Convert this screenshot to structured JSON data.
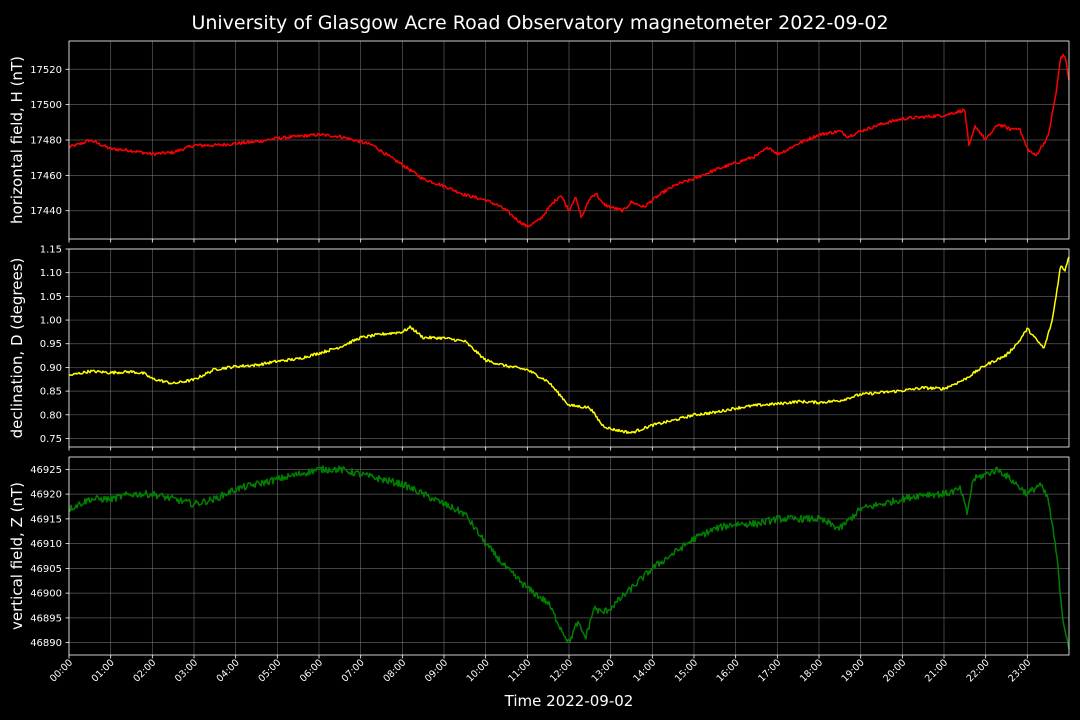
{
  "chart_data": {
    "type": "line",
    "title": "University of Glasgow Acre Road Observatory magnetometer 2022-09-02",
    "xlabel": "Time 2022-09-02",
    "x_tick_labels": [
      "00:00",
      "01:00",
      "02:00",
      "03:00",
      "04:00",
      "05:00",
      "06:00",
      "07:00",
      "08:00",
      "09:00",
      "10:00",
      "11:00",
      "12:00",
      "13:00",
      "14:00",
      "15:00",
      "16:00",
      "17:00",
      "18:00",
      "19:00",
      "20:00",
      "21:00",
      "22:00",
      "23:00"
    ],
    "xlim_hours": [
      0,
      24
    ],
    "grid": true,
    "panels": [
      {
        "ylabel": "horizontal field, H (nT)",
        "color": "#ff0000",
        "ylim": [
          17424,
          17536
        ],
        "yticks": [
          17440,
          17460,
          17480,
          17500,
          17520
        ],
        "data": [
          [
            0,
            17476
          ],
          [
            0.3,
            17478
          ],
          [
            0.5,
            17480
          ],
          [
            1,
            17475
          ],
          [
            1.5,
            17474
          ],
          [
            2,
            17472
          ],
          [
            2.5,
            17473
          ],
          [
            3,
            17477
          ],
          [
            3.5,
            17477
          ],
          [
            4,
            17478
          ],
          [
            4.5,
            17479
          ],
          [
            5,
            17481
          ],
          [
            5.5,
            17482
          ],
          [
            6,
            17483
          ],
          [
            6.5,
            17482
          ],
          [
            7,
            17479
          ],
          [
            7.3,
            17477
          ],
          [
            7.6,
            17472
          ],
          [
            8,
            17466
          ],
          [
            8.5,
            17458
          ],
          [
            9,
            17454
          ],
          [
            9.5,
            17449
          ],
          [
            10,
            17446
          ],
          [
            10.3,
            17443
          ],
          [
            10.5,
            17440
          ],
          [
            10.8,
            17434
          ],
          [
            11,
            17431
          ],
          [
            11.3,
            17435
          ],
          [
            11.6,
            17444
          ],
          [
            11.8,
            17449
          ],
          [
            12,
            17440
          ],
          [
            12.15,
            17448
          ],
          [
            12.3,
            17436
          ],
          [
            12.5,
            17447
          ],
          [
            12.65,
            17450
          ],
          [
            12.8,
            17444
          ],
          [
            13,
            17442
          ],
          [
            13.3,
            17440
          ],
          [
            13.5,
            17445
          ],
          [
            13.8,
            17442
          ],
          [
            14,
            17446
          ],
          [
            14.3,
            17451
          ],
          [
            14.6,
            17455
          ],
          [
            15,
            17458
          ],
          [
            15.5,
            17463
          ],
          [
            16,
            17467
          ],
          [
            16.5,
            17471
          ],
          [
            16.8,
            17476
          ],
          [
            17,
            17472
          ],
          [
            17.2,
            17474
          ],
          [
            17.5,
            17478
          ],
          [
            18,
            17483
          ],
          [
            18.5,
            17485
          ],
          [
            18.7,
            17482
          ],
          [
            19,
            17485
          ],
          [
            19.5,
            17489
          ],
          [
            20,
            17492
          ],
          [
            20.5,
            17493
          ],
          [
            21,
            17494
          ],
          [
            21.5,
            17497
          ],
          [
            21.6,
            17476
          ],
          [
            21.75,
            17488
          ],
          [
            22,
            17480
          ],
          [
            22.3,
            17489
          ],
          [
            22.6,
            17486
          ],
          [
            22.8,
            17487
          ],
          [
            23,
            17475
          ],
          [
            23.2,
            17471
          ],
          [
            23.5,
            17482
          ],
          [
            23.7,
            17508
          ],
          [
            23.8,
            17527
          ],
          [
            23.9,
            17528
          ],
          [
            24,
            17514
          ]
        ]
      },
      {
        "ylabel": "declination, D (degrees)",
        "color": "#ffff00",
        "ylim": [
          0.732,
          1.15
        ],
        "yticks": [
          0.75,
          0.8,
          0.85,
          0.9,
          0.95,
          1.0,
          1.05,
          1.1,
          1.15
        ],
        "data": [
          [
            0,
            0.883
          ],
          [
            0.5,
            0.892
          ],
          [
            1,
            0.889
          ],
          [
            1.5,
            0.891
          ],
          [
            1.8,
            0.887
          ],
          [
            2,
            0.876
          ],
          [
            2.5,
            0.866
          ],
          [
            3,
            0.874
          ],
          [
            3.5,
            0.896
          ],
          [
            4,
            0.902
          ],
          [
            4.5,
            0.905
          ],
          [
            5,
            0.913
          ],
          [
            5.5,
            0.918
          ],
          [
            6,
            0.93
          ],
          [
            6.5,
            0.943
          ],
          [
            7,
            0.963
          ],
          [
            7.5,
            0.97
          ],
          [
            8,
            0.975
          ],
          [
            8.2,
            0.985
          ],
          [
            8.5,
            0.963
          ],
          [
            9,
            0.962
          ],
          [
            9.5,
            0.955
          ],
          [
            10,
            0.915
          ],
          [
            10.5,
            0.903
          ],
          [
            11,
            0.895
          ],
          [
            11.5,
            0.87
          ],
          [
            12,
            0.82
          ],
          [
            12.5,
            0.815
          ],
          [
            12.8,
            0.778
          ],
          [
            13,
            0.77
          ],
          [
            13.5,
            0.762
          ],
          [
            14,
            0.778
          ],
          [
            14.5,
            0.788
          ],
          [
            15,
            0.8
          ],
          [
            15.5,
            0.805
          ],
          [
            16,
            0.814
          ],
          [
            16.5,
            0.82
          ],
          [
            17,
            0.823
          ],
          [
            17.5,
            0.828
          ],
          [
            18,
            0.826
          ],
          [
            18.5,
            0.83
          ],
          [
            19,
            0.843
          ],
          [
            19.5,
            0.847
          ],
          [
            20,
            0.851
          ],
          [
            20.5,
            0.857
          ],
          [
            21,
            0.855
          ],
          [
            21.5,
            0.875
          ],
          [
            22,
            0.905
          ],
          [
            22.5,
            0.926
          ],
          [
            22.8,
            0.955
          ],
          [
            23,
            0.982
          ],
          [
            23.2,
            0.96
          ],
          [
            23.4,
            0.94
          ],
          [
            23.6,
            1.0
          ],
          [
            23.8,
            1.115
          ],
          [
            23.9,
            1.105
          ],
          [
            24,
            1.135
          ]
        ]
      },
      {
        "ylabel": "vertical field, Z (nT)",
        "color": "#008000",
        "ylim": [
          46887.5,
          46927.5
        ],
        "yticks": [
          46890,
          46895,
          46900,
          46905,
          46910,
          46915,
          46920,
          46925
        ],
        "data": [
          [
            0,
            46917
          ],
          [
            0.5,
            46919
          ],
          [
            1,
            46919
          ],
          [
            1.5,
            46920
          ],
          [
            2,
            46920
          ],
          [
            2.5,
            46919
          ],
          [
            3,
            46918
          ],
          [
            3.5,
            46919
          ],
          [
            4,
            46921
          ],
          [
            4.5,
            46922
          ],
          [
            5,
            46923
          ],
          [
            5.5,
            46924
          ],
          [
            6,
            46925
          ],
          [
            6.5,
            46925
          ],
          [
            7,
            46924
          ],
          [
            7.5,
            46923
          ],
          [
            8,
            46922
          ],
          [
            8.5,
            46920
          ],
          [
            9,
            46918
          ],
          [
            9.5,
            46916
          ],
          [
            10,
            46910
          ],
          [
            10.5,
            46905
          ],
          [
            11,
            46901
          ],
          [
            11.5,
            46898
          ],
          [
            11.8,
            46893
          ],
          [
            12,
            46890
          ],
          [
            12.2,
            46894
          ],
          [
            12.4,
            46891
          ],
          [
            12.6,
            46897
          ],
          [
            12.8,
            46896
          ],
          [
            13,
            46897
          ],
          [
            13.5,
            46901
          ],
          [
            14,
            46905
          ],
          [
            14.5,
            46908
          ],
          [
            15,
            46911
          ],
          [
            15.5,
            46913
          ],
          [
            16,
            46914
          ],
          [
            16.5,
            46914
          ],
          [
            17,
            46915
          ],
          [
            17.5,
            46915
          ],
          [
            18,
            46915
          ],
          [
            18.5,
            46913
          ],
          [
            19,
            46917
          ],
          [
            19.5,
            46918
          ],
          [
            20,
            46919
          ],
          [
            20.5,
            46920
          ],
          [
            21,
            46920
          ],
          [
            21.4,
            46921
          ],
          [
            21.55,
            46916
          ],
          [
            21.7,
            46923
          ],
          [
            22,
            46924
          ],
          [
            22.3,
            46925
          ],
          [
            22.6,
            46923
          ],
          [
            23,
            46920
          ],
          [
            23.3,
            46922
          ],
          [
            23.5,
            46919
          ],
          [
            23.7,
            46908
          ],
          [
            23.85,
            46895
          ],
          [
            24,
            46889
          ]
        ]
      }
    ]
  }
}
